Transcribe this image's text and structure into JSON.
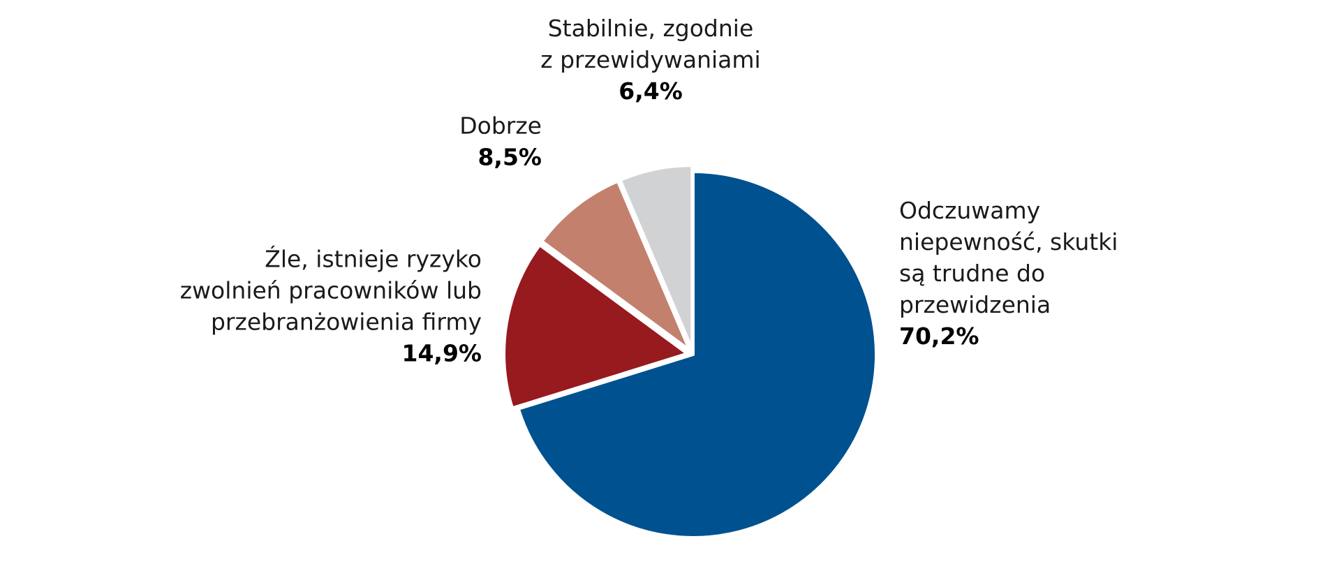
{
  "chart_data": {
    "type": "pie",
    "start_angle_deg": 0,
    "direction": "clockwise",
    "title": "",
    "slices": [
      {
        "label_lines": [
          "Odczuwamy",
          "niepewność, skutki",
          "są trudne do",
          "przewidzenia"
        ],
        "value": 70.2,
        "value_label": "70,2%",
        "color": "#00518F",
        "exploded": false,
        "label_side": "right"
      },
      {
        "label_lines": [
          "Źle, istnieje ryzyko",
          "zwolnień pracowników lub",
          "przebranżowienia firmy"
        ],
        "value": 14.9,
        "value_label": "14,9%",
        "color": "#961A1E",
        "exploded": true,
        "label_side": "left"
      },
      {
        "label_lines": [
          "Dobrze"
        ],
        "value": 8.5,
        "value_label": "8,5%",
        "color": "#C3806D",
        "exploded": true,
        "label_side": "left"
      },
      {
        "label_lines": [
          "Stabilnie, zgodnie",
          "z przewidywaniami"
        ],
        "value": 6.4,
        "value_label": "6,4%",
        "color": "#D1D2D4",
        "exploded": true,
        "label_side": "top"
      }
    ]
  }
}
